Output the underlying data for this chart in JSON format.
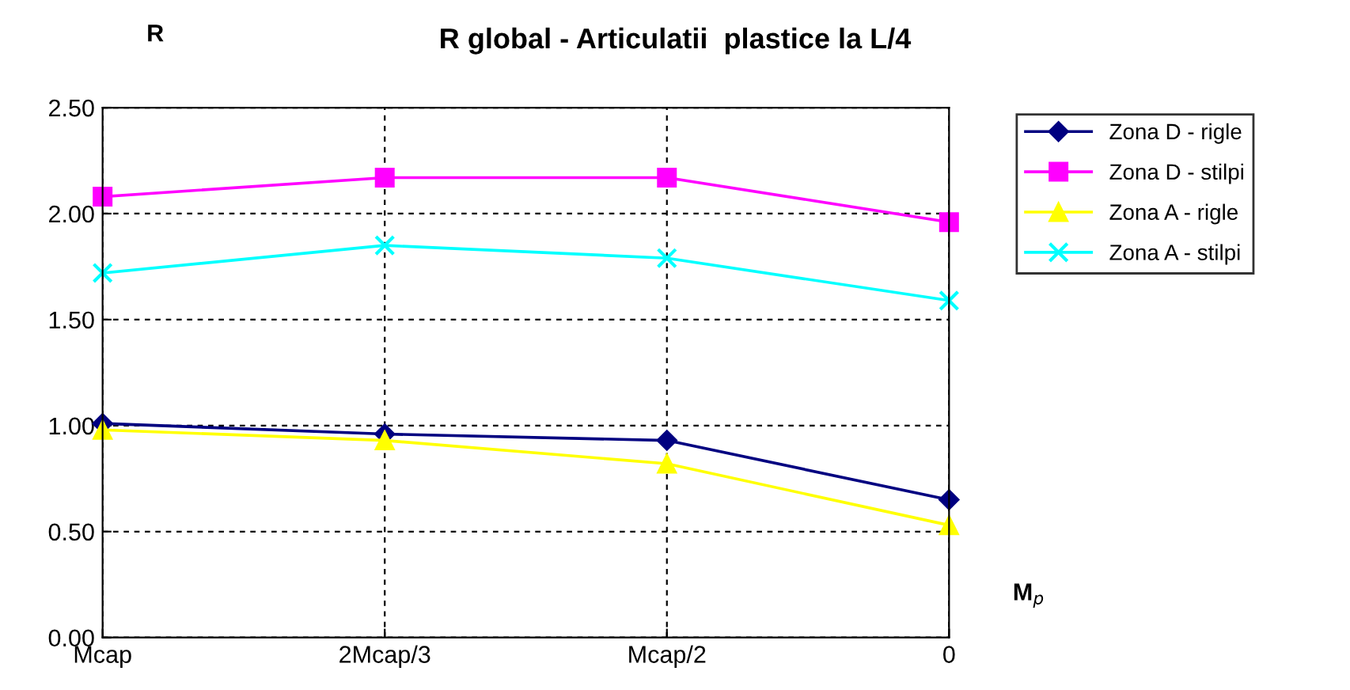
{
  "chart_data": {
    "type": "line",
    "title": "R global - Articulatii  plastice la L/4",
    "ylabel": "R",
    "xlabel": "M$_{p}$",
    "categories": [
      "Mcap",
      "2Mcap/3",
      "Mcap/2",
      "0"
    ],
    "series": [
      {
        "name": "Zona D - rigle",
        "color": "#000080",
        "marker": "diamond",
        "values": [
          1.01,
          0.96,
          0.93,
          0.65
        ]
      },
      {
        "name": "Zona D - stilpi",
        "color": "#ff00ff",
        "marker": "square",
        "values": [
          2.08,
          2.17,
          2.17,
          1.96
        ]
      },
      {
        "name": "Zona A - rigle",
        "color": "#ffff00",
        "marker": "triangle",
        "values": [
          0.98,
          0.93,
          0.82,
          0.53
        ]
      },
      {
        "name": "Zona A - stilpi",
        "color": "#00ffff",
        "marker": "cross",
        "values": [
          1.72,
          1.85,
          1.79,
          1.59
        ]
      }
    ],
    "ylim": [
      0,
      2.5
    ],
    "yticks": [
      {
        "value": 0,
        "label": "0.00"
      },
      {
        "value": 0.5,
        "label": "0.50"
      },
      {
        "value": 1,
        "label": "1.00"
      },
      {
        "value": 1.5,
        "label": "1.50"
      },
      {
        "value": 2,
        "label": "2.00"
      },
      {
        "value": 2.5,
        "label": "2.50"
      }
    ],
    "grid": true,
    "legend": "right",
    "line_style": "solid"
  }
}
